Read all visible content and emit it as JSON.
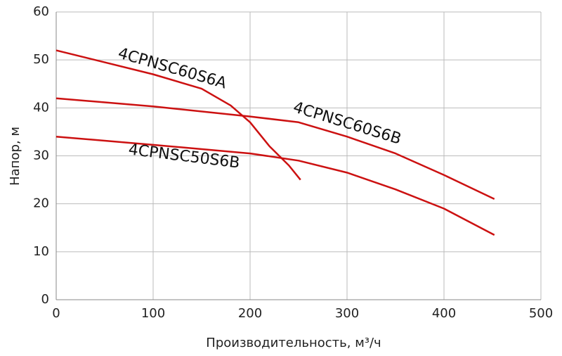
{
  "chart_data": {
    "type": "line",
    "x_label": "Производительность, м³/ч",
    "y_label": "Напор, м",
    "xlim": [
      0,
      500
    ],
    "xticks": [
      0,
      100,
      200,
      300,
      400,
      500
    ],
    "ylim": [
      0,
      60
    ],
    "yticks": [
      0,
      10,
      20,
      30,
      40,
      50,
      60
    ],
    "grid": true,
    "series": [
      {
        "name": "4CPNSC60S6A",
        "color": "#cc1111",
        "x": [
          0,
          50,
          100,
          150,
          180,
          200,
          220,
          240,
          252
        ],
        "values": [
          52,
          49.5,
          47,
          44,
          40.5,
          37,
          32,
          28,
          25
        ]
      },
      {
        "name": "4CPNSC60S6B",
        "color": "#cc1111",
        "x": [
          0,
          100,
          200,
          250,
          300,
          350,
          400,
          452
        ],
        "values": [
          42,
          40.3,
          38.2,
          37,
          34,
          30.5,
          26,
          21
        ]
      },
      {
        "name": "4CPNSC50S6B",
        "color": "#cc1111",
        "x": [
          0,
          100,
          200,
          250,
          300,
          350,
          400,
          452
        ],
        "values": [
          34,
          32.3,
          30.5,
          29,
          26.5,
          23,
          19,
          13.5
        ]
      }
    ]
  }
}
